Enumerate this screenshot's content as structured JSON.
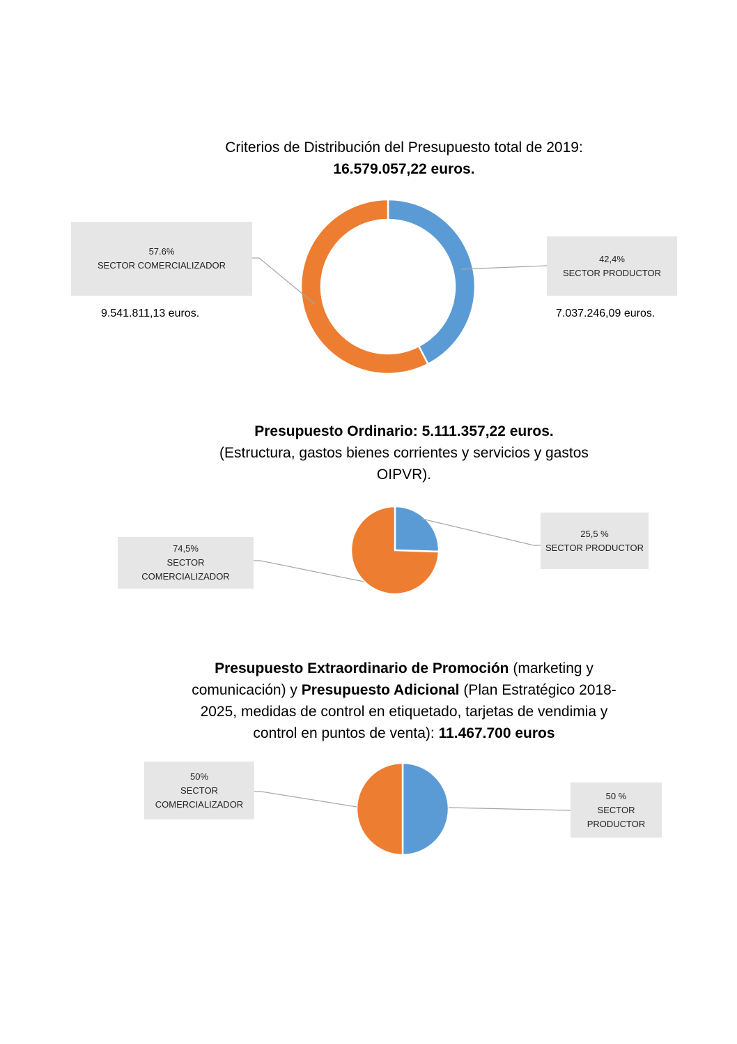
{
  "colors": {
    "productor": "#5b9bd5",
    "comercializador": "#ed7d31",
    "leader": "#a6a6a6",
    "label_bg": "#e7e6e6"
  },
  "section1": {
    "title_line1": "Criterios de Distribución del Presupuesto total de 2019:",
    "title_line2": "16.579.057,22 euros.",
    "comercializador_pct": "57.6%",
    "comercializador_name": "SECTOR COMERCIALIZADOR",
    "comercializador_amount": "9.541.811,13 euros.",
    "productor_pct": "42,4%",
    "productor_name": "SECTOR PRODUCTOR",
    "productor_amount": "7.037.246,09 euros."
  },
  "section2": {
    "title_bold": "Presupuesto Ordinario: 5.111.357,22 euros.",
    "title_line2": "(Estructura, gastos bienes corrientes y servicios y gastos",
    "title_line3": "OIPVR).",
    "comercializador_pct": "74,5%",
    "comercializador_line1": "SECTOR",
    "comercializador_line2": "COMERCIALIZADOR",
    "productor_pct": "25,5 %",
    "productor_name": "SECTOR PRODUCTOR"
  },
  "section3": {
    "bold1": "Presupuesto Extraordinario de Promoción",
    "text1": " (marketing y",
    "text2": "comunicación) y ",
    "bold2": "Presupuesto Adicional",
    "text3": " (Plan Estratégico 2018-",
    "text4": "2025, medidas de control en etiquetado, tarjetas de vendimia y",
    "text5": "control en puntos de venta): ",
    "bold3": "11.467.700 euros",
    "comercializador_pct": "50%",
    "comercializador_line1": "SECTOR",
    "comercializador_line2": "COMERCIALIZADOR",
    "productor_pct": "50 %",
    "productor_line1": "SECTOR",
    "productor_line2": "PRODUCTOR"
  },
  "chart_data": [
    {
      "type": "pie",
      "variant": "donut",
      "categories": [
        "SECTOR PRODUCTOR",
        "SECTOR COMERCIALIZADOR"
      ],
      "values": [
        42.4,
        57.6
      ]
    },
    {
      "type": "pie",
      "categories": [
        "SECTOR PRODUCTOR",
        "SECTOR COMERCIALIZADOR"
      ],
      "values": [
        25.5,
        74.5
      ]
    },
    {
      "type": "pie",
      "categories": [
        "SECTOR PRODUCTOR",
        "SECTOR COMERCIALIZADOR"
      ],
      "values": [
        50,
        50
      ]
    }
  ]
}
